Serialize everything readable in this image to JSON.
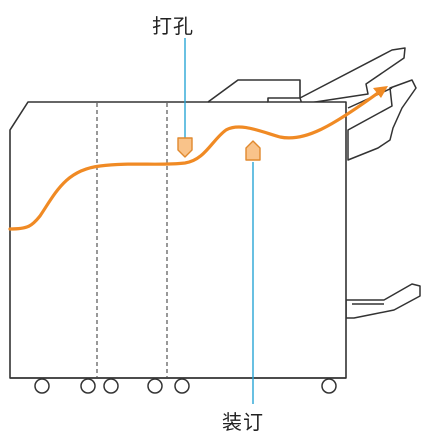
{
  "labels": {
    "punch": "打孔",
    "staple": "装订"
  },
  "colors": {
    "outline": "#333333",
    "paper_path": "#f08a24",
    "marker_fill": "#f9c38a",
    "marker_stroke": "#e0892e",
    "leader_line": "#29a6d6",
    "divider": "#555555"
  },
  "icons": [
    "punch-marker-icon",
    "staple-marker-icon",
    "wheel-icon"
  ]
}
